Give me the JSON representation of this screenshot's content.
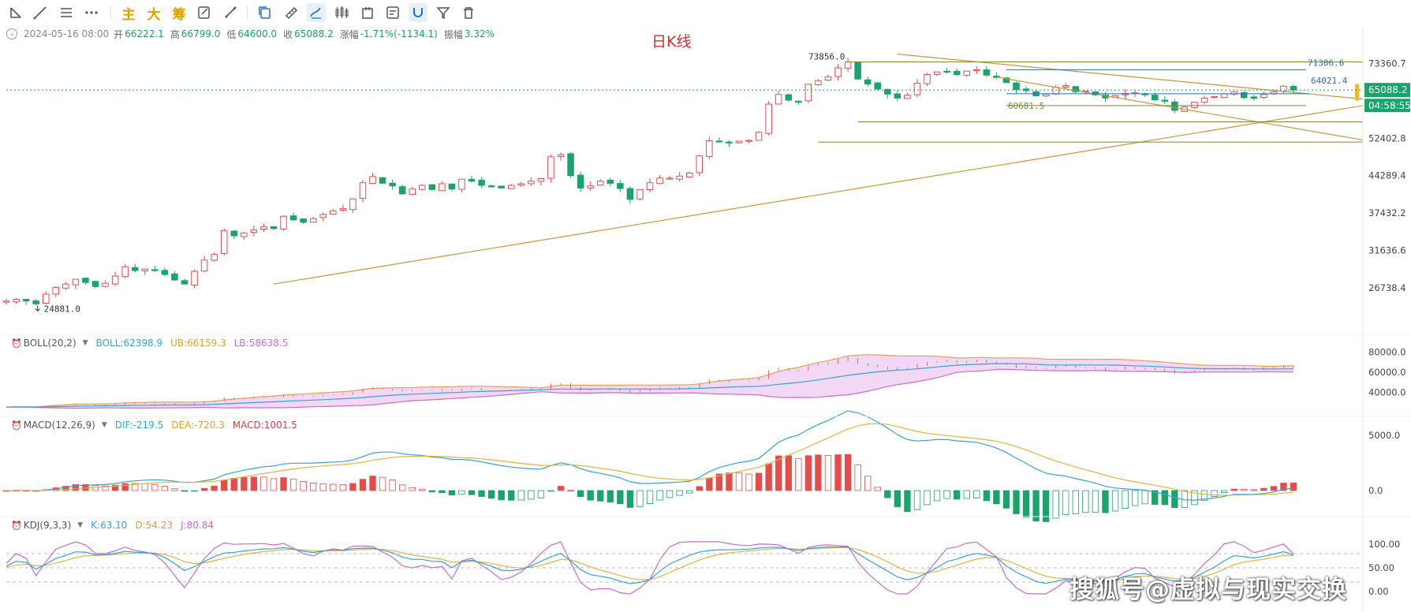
{
  "toolbar": {
    "items": [
      {
        "name": "line-tool-icon",
        "type": "icon"
      },
      {
        "name": "trend-line-icon",
        "type": "icon"
      },
      {
        "name": "horizontal-lines-icon",
        "type": "icon"
      },
      {
        "name": "more-icon",
        "type": "icon"
      },
      {
        "name": "main-button",
        "label": "主"
      },
      {
        "name": "large-button",
        "label": "大"
      },
      {
        "name": "chip-button",
        "label": "筹"
      },
      {
        "name": "edit-note-icon",
        "type": "icon"
      },
      {
        "name": "brush-icon",
        "type": "icon"
      },
      {
        "name": "copy-icon",
        "type": "icon"
      },
      {
        "name": "ruler-icon",
        "type": "icon"
      },
      {
        "name": "draw-pen-icon",
        "type": "icon",
        "active": true
      },
      {
        "name": "candles-icon",
        "type": "icon"
      },
      {
        "name": "calendar-icon",
        "type": "icon"
      },
      {
        "name": "note-icon",
        "type": "icon"
      },
      {
        "name": "magnet-icon",
        "type": "icon",
        "active": true
      },
      {
        "name": "filter-icon",
        "type": "icon"
      },
      {
        "name": "trash-icon",
        "type": "icon"
      }
    ]
  },
  "ohlc": {
    "date": "2024-05-16 08:00",
    "open_label": "开",
    "open": "66222.1",
    "high_label": "高",
    "high": "66799.0",
    "low_label": "低",
    "low": "64600.0",
    "close_label": "收",
    "close": "65088.2",
    "change_label": "涨幅",
    "change": "-1.71%(-1134.1)",
    "amp_label": "振幅",
    "amp": "3.32%"
  },
  "chart_title": "日K线",
  "indicators": {
    "boll": {
      "name": "BOLL(20,2)",
      "mid": "BOLL:62398.9",
      "ub": "UB:66159.3",
      "lb": "LB:58638.5"
    },
    "macd": {
      "name": "MACD(12,26,9)",
      "dif": "DIF:-219.5",
      "dea": "DEA:-720.3",
      "macd": "MACD:1001.5"
    },
    "kdj": {
      "name": "KDJ(9,3,3)",
      "k": "K:63.10",
      "d": "D:54.23",
      "j": "J:80.84"
    }
  },
  "colors": {
    "up": "#e54d4d",
    "down": "#1aa36b",
    "accent": "#d4a017",
    "boll_mid": "#36a3d6",
    "boll_ub": "#e8a050",
    "boll_lb": "#c86bd0",
    "k": "#36a3d6",
    "d": "#e3b341",
    "j": "#c86bd0"
  },
  "price_axis": {
    "ticks": [
      "73360.7",
      "65088.2",
      "52402.8",
      "44289.4",
      "37432.2",
      "31636.6",
      "26738.4"
    ],
    "current_price": "65088.2",
    "countdown": "04:58:55"
  },
  "boll_axis": {
    "ticks": [
      "80000.0",
      "60000.0",
      "40000.0"
    ]
  },
  "macd_axis": {
    "ticks": [
      "5000.0",
      "0.0"
    ]
  },
  "kdj_axis": {
    "ticks": [
      "100.00",
      "50.00",
      "0.00"
    ]
  },
  "annotations": {
    "high": "73856.0",
    "low": "24881.0",
    "level1": "71306.6",
    "level2": "64021.4",
    "level3": "60681.5"
  },
  "watermark": "搜狐号@虚拟与现实交换",
  "chart_data": {
    "type": "candlestick",
    "title": "日K线",
    "y_scale": "log",
    "ylim": [
      22000,
      80000
    ],
    "grid": false,
    "close_series": [
      25200,
      25400,
      25200,
      24881,
      26000,
      26800,
      27200,
      27800,
      27400,
      26900,
      27300,
      28200,
      29400,
      28900,
      29100,
      29000,
      28400,
      27700,
      27200,
      28800,
      30300,
      31100,
      34600,
      33800,
      34200,
      34700,
      35200,
      34900,
      36900,
      36300,
      35900,
      36500,
      37200,
      37800,
      38200,
      39900,
      42900,
      44100,
      42800,
      42300,
      40800,
      41700,
      42400,
      41600,
      42700,
      41700,
      43600,
      43200,
      42400,
      42100,
      41900,
      42400,
      42700,
      43200,
      43700,
      48200,
      48700,
      44300,
      41900,
      42300,
      43200,
      42800,
      41800,
      39800,
      41600,
      42900,
      43800,
      43800,
      44200,
      44800,
      48400,
      51800,
      51600,
      51300,
      51700,
      51900,
      53800,
      61100,
      63800,
      62200,
      61800,
      66800,
      67900,
      69100,
      71900,
      73856,
      68400,
      66900,
      65400,
      63900,
      62800,
      63600,
      67100,
      69800,
      70600,
      70800,
      69800,
      70900,
      71300,
      69600,
      68900,
      67300,
      65200,
      64900,
      63400,
      63900,
      65900,
      66400,
      64600,
      64800,
      63700,
      62800,
      63500,
      64100,
      64300,
      63900,
      62300,
      61900,
      59400,
      60300,
      61600,
      62800,
      63200,
      64000,
      64600,
      62900,
      62700,
      63800,
      64600,
      66222,
      65088
    ],
    "annotations_values": {
      "high": 73856.0,
      "low": 24881.0,
      "level1": 71306.6,
      "level2": 64021.4,
      "level3": 60681.5
    },
    "boll": {
      "mid": 62398.9,
      "ub": 66159.3,
      "lb": 58638.5
    },
    "macd": {
      "dif": -219.5,
      "dea": -720.3,
      "macd": 1001.5
    },
    "kdj": {
      "k": 63.1,
      "d": 54.23,
      "j": 80.84
    }
  }
}
